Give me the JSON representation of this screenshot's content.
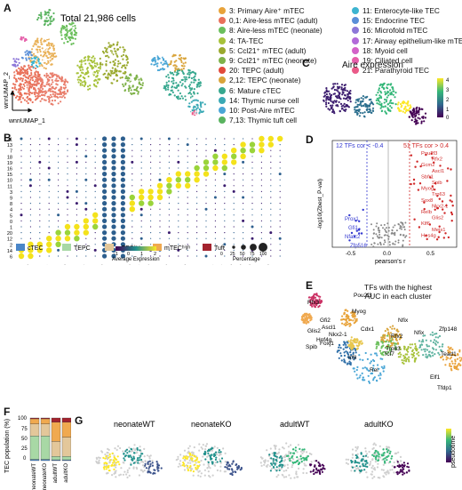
{
  "panels": {
    "A": {
      "label": "A",
      "total": "Total 21,986 cells",
      "axis_x": "wnnUMAP_1",
      "axis_y": "wnnUMAP_2",
      "cluster_labels": [
        "0",
        "1",
        "2",
        "3",
        "4",
        "5",
        "6",
        "7",
        "8",
        "9",
        "10",
        "11",
        "12",
        "13",
        "14",
        "15",
        "16",
        "17",
        "18",
        "19",
        "20",
        "21",
        "12"
      ]
    },
    "B": {
      "label": "B"
    },
    "C": {
      "label": "C",
      "title": "Aire expression",
      "scale": [
        "4",
        "3",
        "2",
        "1",
        "0"
      ]
    },
    "D": {
      "label": "D",
      "left_note": "12 TFs cor < -0.4",
      "right_note": "51 TFs cor > 0.4",
      "xlabel": "pearson's r",
      "ylabel": "-log10(Zbest_P-val)",
      "xticks": [
        "-0.5",
        "0.0",
        "0.5"
      ],
      "neg_genes": [
        "Prox1",
        "Gfi1",
        "Nfatc2",
        "Zfp516"
      ],
      "pos_genes": [
        "Pou2f3",
        "Rfx2",
        "Gcm2",
        "Ascl1",
        "Sbfr1",
        "Spib",
        "Myog",
        "Trp63",
        "Sox8",
        "Nkx2-1",
        "Relb",
        "Glis2",
        "Klf6",
        "Meis1",
        "Hes4g"
      ]
    },
    "E": {
      "label": "E",
      "title_line1": "TFs with the highest",
      "title_line2": "AUC in each cluster",
      "genes": [
        "Rfx3",
        "Pou2f3",
        "Myog",
        "Gfi2",
        "Glis2",
        "Ascl1",
        "Nkx2-1",
        "Hnf4g",
        "Spib",
        "Foxj1",
        "Nfix",
        "Cdx1",
        "Rfx2",
        "Irf8",
        "Rel",
        "Tcf7",
        "Trp63",
        "Nfix",
        "Zfp148",
        "Tead1",
        "Elf1",
        "Tfdp1"
      ]
    },
    "F": {
      "label": "F",
      "ylabel": "TEC population (%)",
      "yticks": [
        "100",
        "75",
        "50",
        "25",
        "0"
      ]
    },
    "G": {
      "label": "G",
      "titles": [
        "neonateWT",
        "neonateKO",
        "adultWT",
        "adultKO"
      ],
      "legend": "pseudotime"
    }
  },
  "legend_A": [
    {
      "text": "3: Primary Aire⁺ mTEC",
      "color": "#e8a33a"
    },
    {
      "text": "0,1: Aire-less mTEC (adult)",
      "color": "#e9715a"
    },
    {
      "text": "8: Aire-less mTEC (neonate)",
      "color": "#6bbf5c"
    },
    {
      "text": "4: TA-TEC",
      "color": "#a7c23a"
    },
    {
      "text": "5: Ccl21⁺ mTEC (adult)",
      "color": "#9aa92e"
    },
    {
      "text": "9: Ccl21⁺ mTEC (neonate)",
      "color": "#7fb24a"
    },
    {
      "text": "20: TEPC (adult)",
      "color": "#e24a3b"
    },
    {
      "text": "2,12: TEPC (neonate)",
      "color": "#d9a43b"
    },
    {
      "text": "6: Mature cTEC",
      "color": "#37a88f"
    },
    {
      "text": "14: Thymic nurse cell",
      "color": "#3aa9b5"
    },
    {
      "text": "10: Post-Aire mTEC",
      "color": "#4aa6d6"
    },
    {
      "text": "7,13: Thymic tuft cell",
      "color": "#59b35f"
    },
    {
      "text": "11: Enterocyte-like TEC",
      "color": "#3db4d0"
    },
    {
      "text": "15: Endocrine TEC",
      "color": "#5a8fd8"
    },
    {
      "text": "16: Microfold mTEC",
      "color": "#8d77d8"
    },
    {
      "text": "17: Airway epithelium-like mTEC",
      "color": "#b26bd9"
    },
    {
      "text": "18: Myoid cell",
      "color": "#d363c8"
    },
    {
      "text": "19: Ciliated cell",
      "color": "#e55fa9"
    },
    {
      "text": "21: Parathyroid TEC",
      "color": "#ea5a88"
    }
  ],
  "dotplot": {
    "rows": [
      "21",
      "13",
      "7",
      "18",
      "19",
      "16",
      "15",
      "10",
      "11",
      "3",
      "9",
      "8",
      "4",
      "5",
      "0",
      "1",
      "20",
      "12",
      "2",
      "14",
      "6"
    ],
    "genes": [
      "Psmb11",
      "Prss16",
      "Fis1",
      "Ptprc",
      "Mlb",
      "Trp63",
      "Cd21a",
      "Ltk",
      "Aire",
      "Cd80",
      "H2-Aa",
      "Glt1",
      "Krt10",
      "Hnf4g",
      "Pigr",
      "Ascl1",
      "Smo26",
      "Spi1",
      "Gp2",
      "Muc5b",
      "Ngla1",
      "Myog",
      "Dss4",
      "Rfx2",
      "Fgls2",
      "Pou2f3",
      "Dclk1",
      "Gcm2",
      "Pth"
    ],
    "group_bar": [
      "cTEC",
      "TEPC",
      "mTECˡᵒʷ",
      "mTECʰⁱᵍʰ",
      "Tuft"
    ],
    "group_colors": [
      "#4a86c8",
      "#a8d8a5",
      "#e3c79a",
      "#f0a94f",
      "#a3232e"
    ],
    "avg_expr_label": "Average Expression",
    "avg_expr_ticks": [
      "-1",
      "0",
      "1",
      "2"
    ],
    "pct_label": "Percentage",
    "pct_ticks": [
      "0",
      "25",
      "50",
      "75",
      "100"
    ]
  },
  "stacked_bar": {
    "categories": [
      "neonateWT",
      "neonateKO",
      "adultWT",
      "adultKO"
    ],
    "series": [
      {
        "color": "#4a86c8",
        "values": [
          3,
          3,
          2,
          2
        ]
      },
      {
        "color": "#a8d8a5",
        "values": [
          55,
          55,
          8,
          8
        ]
      },
      {
        "color": "#e3c79a",
        "values": [
          28,
          28,
          35,
          45
        ]
      },
      {
        "color": "#f0a94f",
        "values": [
          12,
          12,
          45,
          35
        ]
      },
      {
        "color": "#a3232e",
        "values": [
          2,
          2,
          10,
          10
        ]
      }
    ]
  }
}
